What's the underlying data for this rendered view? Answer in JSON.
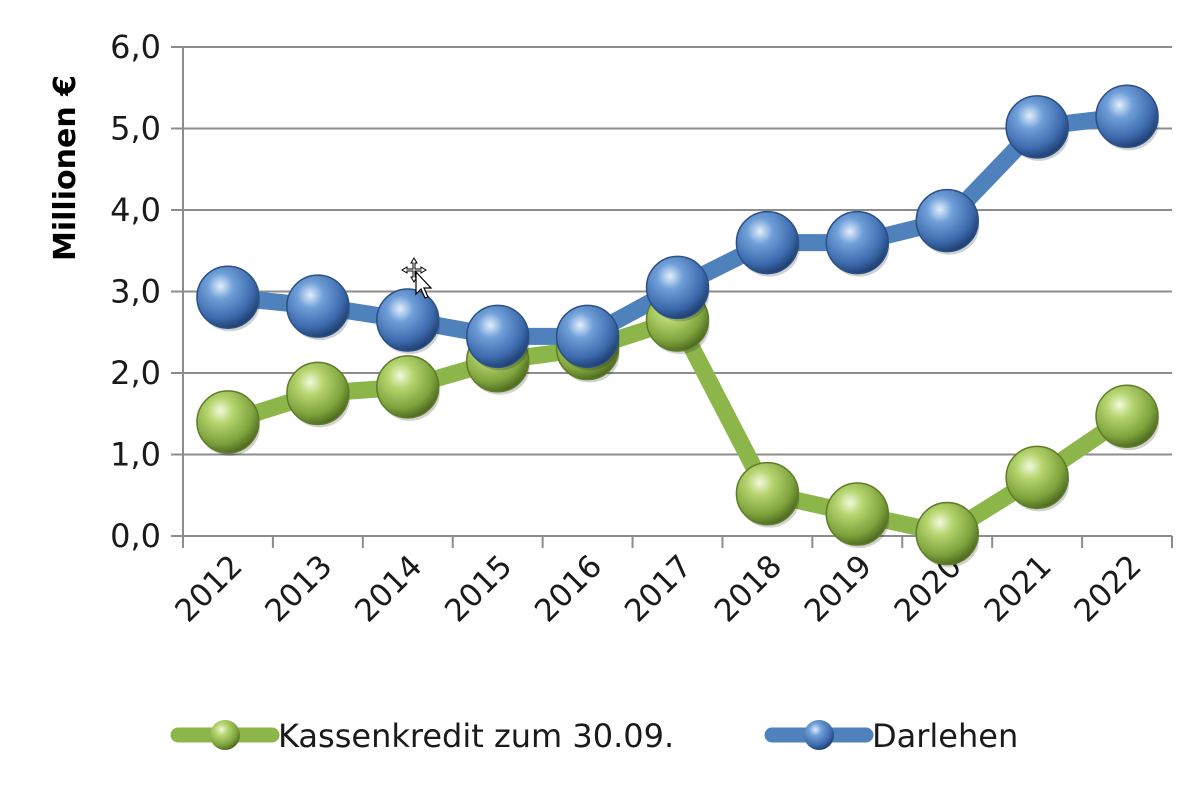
{
  "chart_data": {
    "type": "line",
    "title": "",
    "xlabel": "",
    "ylabel": "Millionen €",
    "categories": [
      "2012",
      "2013",
      "2014",
      "2015",
      "2016",
      "2017",
      "2018",
      "2019",
      "2020",
      "2021",
      "2022"
    ],
    "ylim": [
      0,
      6
    ],
    "yticks": [
      "0,0",
      "1,0",
      "2,0",
      "3,0",
      "4,0",
      "5,0",
      "6,0"
    ],
    "grid": true,
    "legend": "bottom",
    "series": [
      {
        "name": "Kassenkredit zum 30.09.",
        "color": "#8db64a",
        "values": [
          1.4,
          1.75,
          1.83,
          2.15,
          2.3,
          2.65,
          0.52,
          0.27,
          0.03,
          0.72,
          1.47
        ]
      },
      {
        "name": "Darlehen",
        "color": "#4f81bd",
        "values": [
          2.93,
          2.82,
          2.65,
          2.45,
          2.45,
          3.05,
          3.6,
          3.6,
          3.87,
          5.02,
          5.15
        ]
      }
    ]
  }
}
